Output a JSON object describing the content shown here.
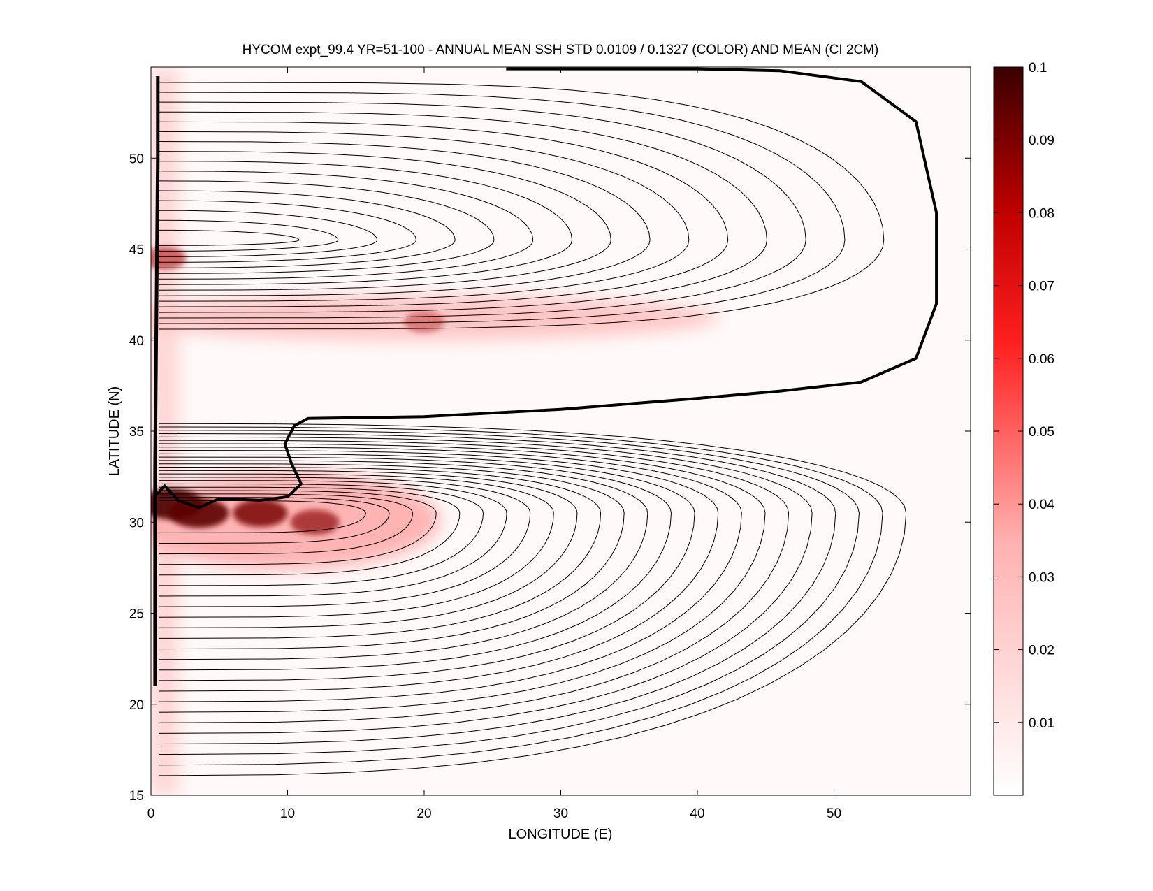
{
  "chart_data": {
    "type": "heatmap",
    "title": "HYCOM expt_99.4 YR=51-100 - ANNUAL MEAN SSH STD 0.0109 / 0.1327 (COLOR) AND MEAN (CI 2CM)",
    "xlabel": "LONGITUDE (E)",
    "ylabel": "LATITUDE (N)",
    "xlim": [
      0,
      60
    ],
    "ylim": [
      15,
      55
    ],
    "x_ticks": [
      0,
      10,
      20,
      30,
      40,
      50
    ],
    "y_ticks": [
      15,
      20,
      25,
      30,
      35,
      40,
      45,
      50
    ],
    "colorbar": {
      "range": [
        0,
        0.1
      ],
      "ticks": [
        0.01,
        0.02,
        0.03,
        0.04,
        0.05,
        0.06,
        0.07,
        0.08,
        0.09,
        0.1
      ],
      "colors": [
        "#ffffff",
        "#ff0000",
        "#400000"
      ]
    },
    "variability_hotspots": [
      {
        "lon": 1.5,
        "lat": 31.0,
        "value": 0.1
      },
      {
        "lon": 3.5,
        "lat": 30.5,
        "value": 0.09
      },
      {
        "lon": 8.0,
        "lat": 30.5,
        "value": 0.07
      },
      {
        "lon": 12.0,
        "lat": 30.0,
        "value": 0.05
      },
      {
        "lon": 20.0,
        "lat": 41.0,
        "value": 0.02
      },
      {
        "lon": 1.0,
        "lat": 44.5,
        "value": 0.03
      }
    ],
    "zero_contour": [
      [
        26,
        54.9
      ],
      [
        40,
        54.9
      ],
      [
        46,
        54.8
      ],
      [
        52,
        54.2
      ],
      [
        56,
        52
      ],
      [
        57.5,
        47
      ],
      [
        57.5,
        42
      ],
      [
        56,
        39
      ],
      [
        52,
        37.7
      ],
      [
        46,
        37.2
      ],
      [
        40,
        36.8
      ],
      [
        30,
        36.2
      ],
      [
        20,
        35.8
      ],
      [
        11.5,
        35.7
      ],
      [
        10.5,
        35.3
      ],
      [
        9.8,
        34.3
      ],
      [
        10.3,
        33.2
      ],
      [
        11,
        32.1
      ],
      [
        10,
        31.4
      ],
      [
        8,
        31.2
      ],
      [
        5,
        31.3
      ],
      [
        3.5,
        30.8
      ],
      [
        2,
        31.2
      ],
      [
        1,
        32
      ],
      [
        0.4,
        31.5
      ]
    ],
    "contour_interval": "2CM"
  }
}
